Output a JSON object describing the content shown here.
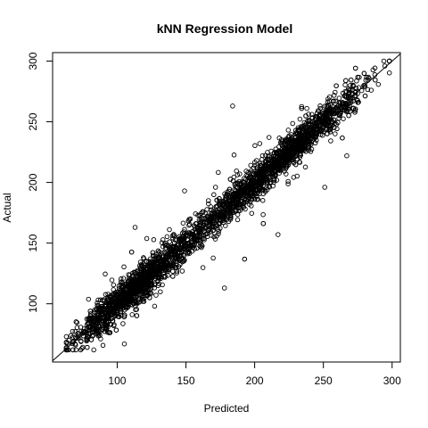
{
  "chart_data": {
    "type": "scatter",
    "title": "kNN Regression Model",
    "xlabel": "Predicted",
    "ylabel": "Actual",
    "xlim": [
      53,
      306
    ],
    "ylim": [
      52,
      307
    ],
    "x_ticks": [
      100,
      150,
      200,
      250,
      300
    ],
    "y_ticks": [
      100,
      150,
      200,
      250,
      300
    ],
    "reference_line": {
      "intercept": 0,
      "slope": 1
    },
    "point_style": "open-circle",
    "point_color": "#000000",
    "grid": false,
    "legend": "none",
    "points_summary": {
      "approx_count": 8000,
      "x_range": [
        63,
        298
      ],
      "y_range": [
        62,
        300
      ],
      "relationship": "actual ≈ predicted",
      "notable_outliers": [
        {
          "x": 184,
          "y": 263
        },
        {
          "x": 178,
          "y": 113
        },
        {
          "x": 217,
          "y": 157
        },
        {
          "x": 251,
          "y": 196
        },
        {
          "x": 267,
          "y": 222
        },
        {
          "x": 113,
          "y": 163
        }
      ]
    }
  }
}
